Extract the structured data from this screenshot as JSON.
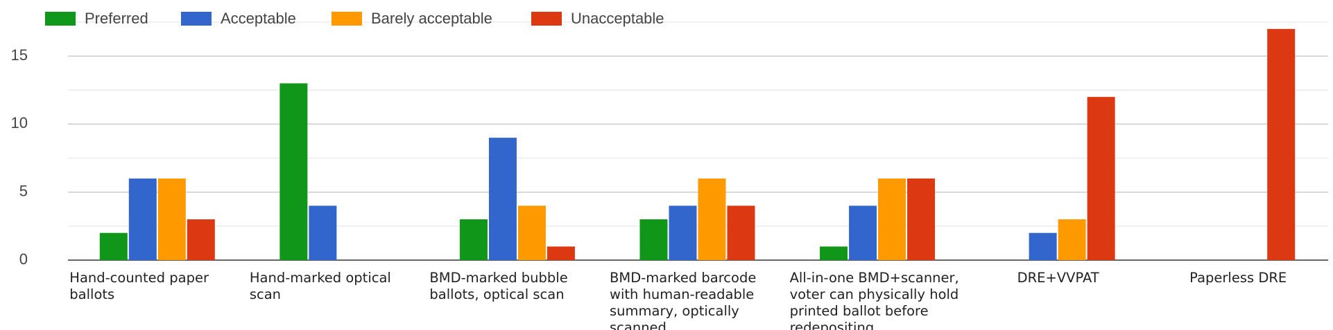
{
  "chart_data": {
    "type": "bar",
    "categories": [
      "Hand-counted paper ballots",
      "Hand-marked optical scan",
      "BMD-marked bubble ballots, optical scan",
      "BMD-marked barcode with human-readable summary, optically scanned",
      "All-in-one BMD+scanner, voter can physically hold printed ballot before redepositing",
      "DRE+VVPAT",
      "Paperless DRE"
    ],
    "series": [
      {
        "name": "Preferred",
        "color": "#109618",
        "values": [
          2,
          13,
          3,
          3,
          1,
          0,
          0
        ]
      },
      {
        "name": "Acceptable",
        "color": "#3366cc",
        "values": [
          6,
          4,
          9,
          4,
          4,
          2,
          0
        ]
      },
      {
        "name": "Barely acceptable",
        "color": "#ff9900",
        "values": [
          6,
          0,
          4,
          6,
          6,
          3,
          0
        ]
      },
      {
        "name": "Unacceptable",
        "color": "#dc3912",
        "values": [
          3,
          0,
          1,
          4,
          6,
          12,
          17
        ]
      }
    ],
    "ylim": [
      0,
      17.5
    ],
    "yticks": [
      0,
      5,
      10,
      15
    ],
    "minor_yticks": [
      2.5,
      7.5,
      12.5,
      17.5
    ],
    "grid": true,
    "legend": "top"
  }
}
